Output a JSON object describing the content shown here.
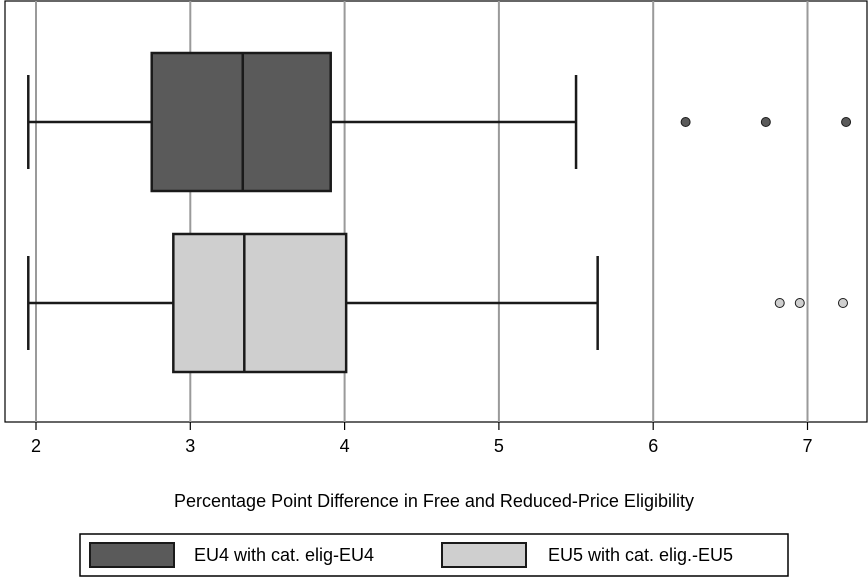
{
  "chart_data": {
    "type": "boxplot",
    "orientation": "horizontal",
    "title": "",
    "xlabel": "Percentage Point Difference in Free and Reduced-Price Eligibility",
    "xlim": [
      1.8,
      7.4
    ],
    "xticks": [
      2,
      3,
      4,
      5,
      6,
      7
    ],
    "grid": "vertical",
    "legend_position": "bottom",
    "series": [
      {
        "name": "EU4 with cat. elig-EU4",
        "color": "#5a5a5a",
        "whisker_low": 1.95,
        "q1": 2.75,
        "median": 3.34,
        "q3": 3.91,
        "whisker_high": 5.5,
        "outliers": [
          6.21,
          6.73,
          7.25
        ]
      },
      {
        "name": "EU5 with cat. elig.-EU5",
        "color": "#cfcfcf",
        "whisker_low": 1.95,
        "q1": 2.89,
        "median": 3.35,
        "q3": 4.01,
        "whisker_high": 5.64,
        "outliers": [
          6.82,
          6.95,
          7.23
        ]
      }
    ]
  }
}
